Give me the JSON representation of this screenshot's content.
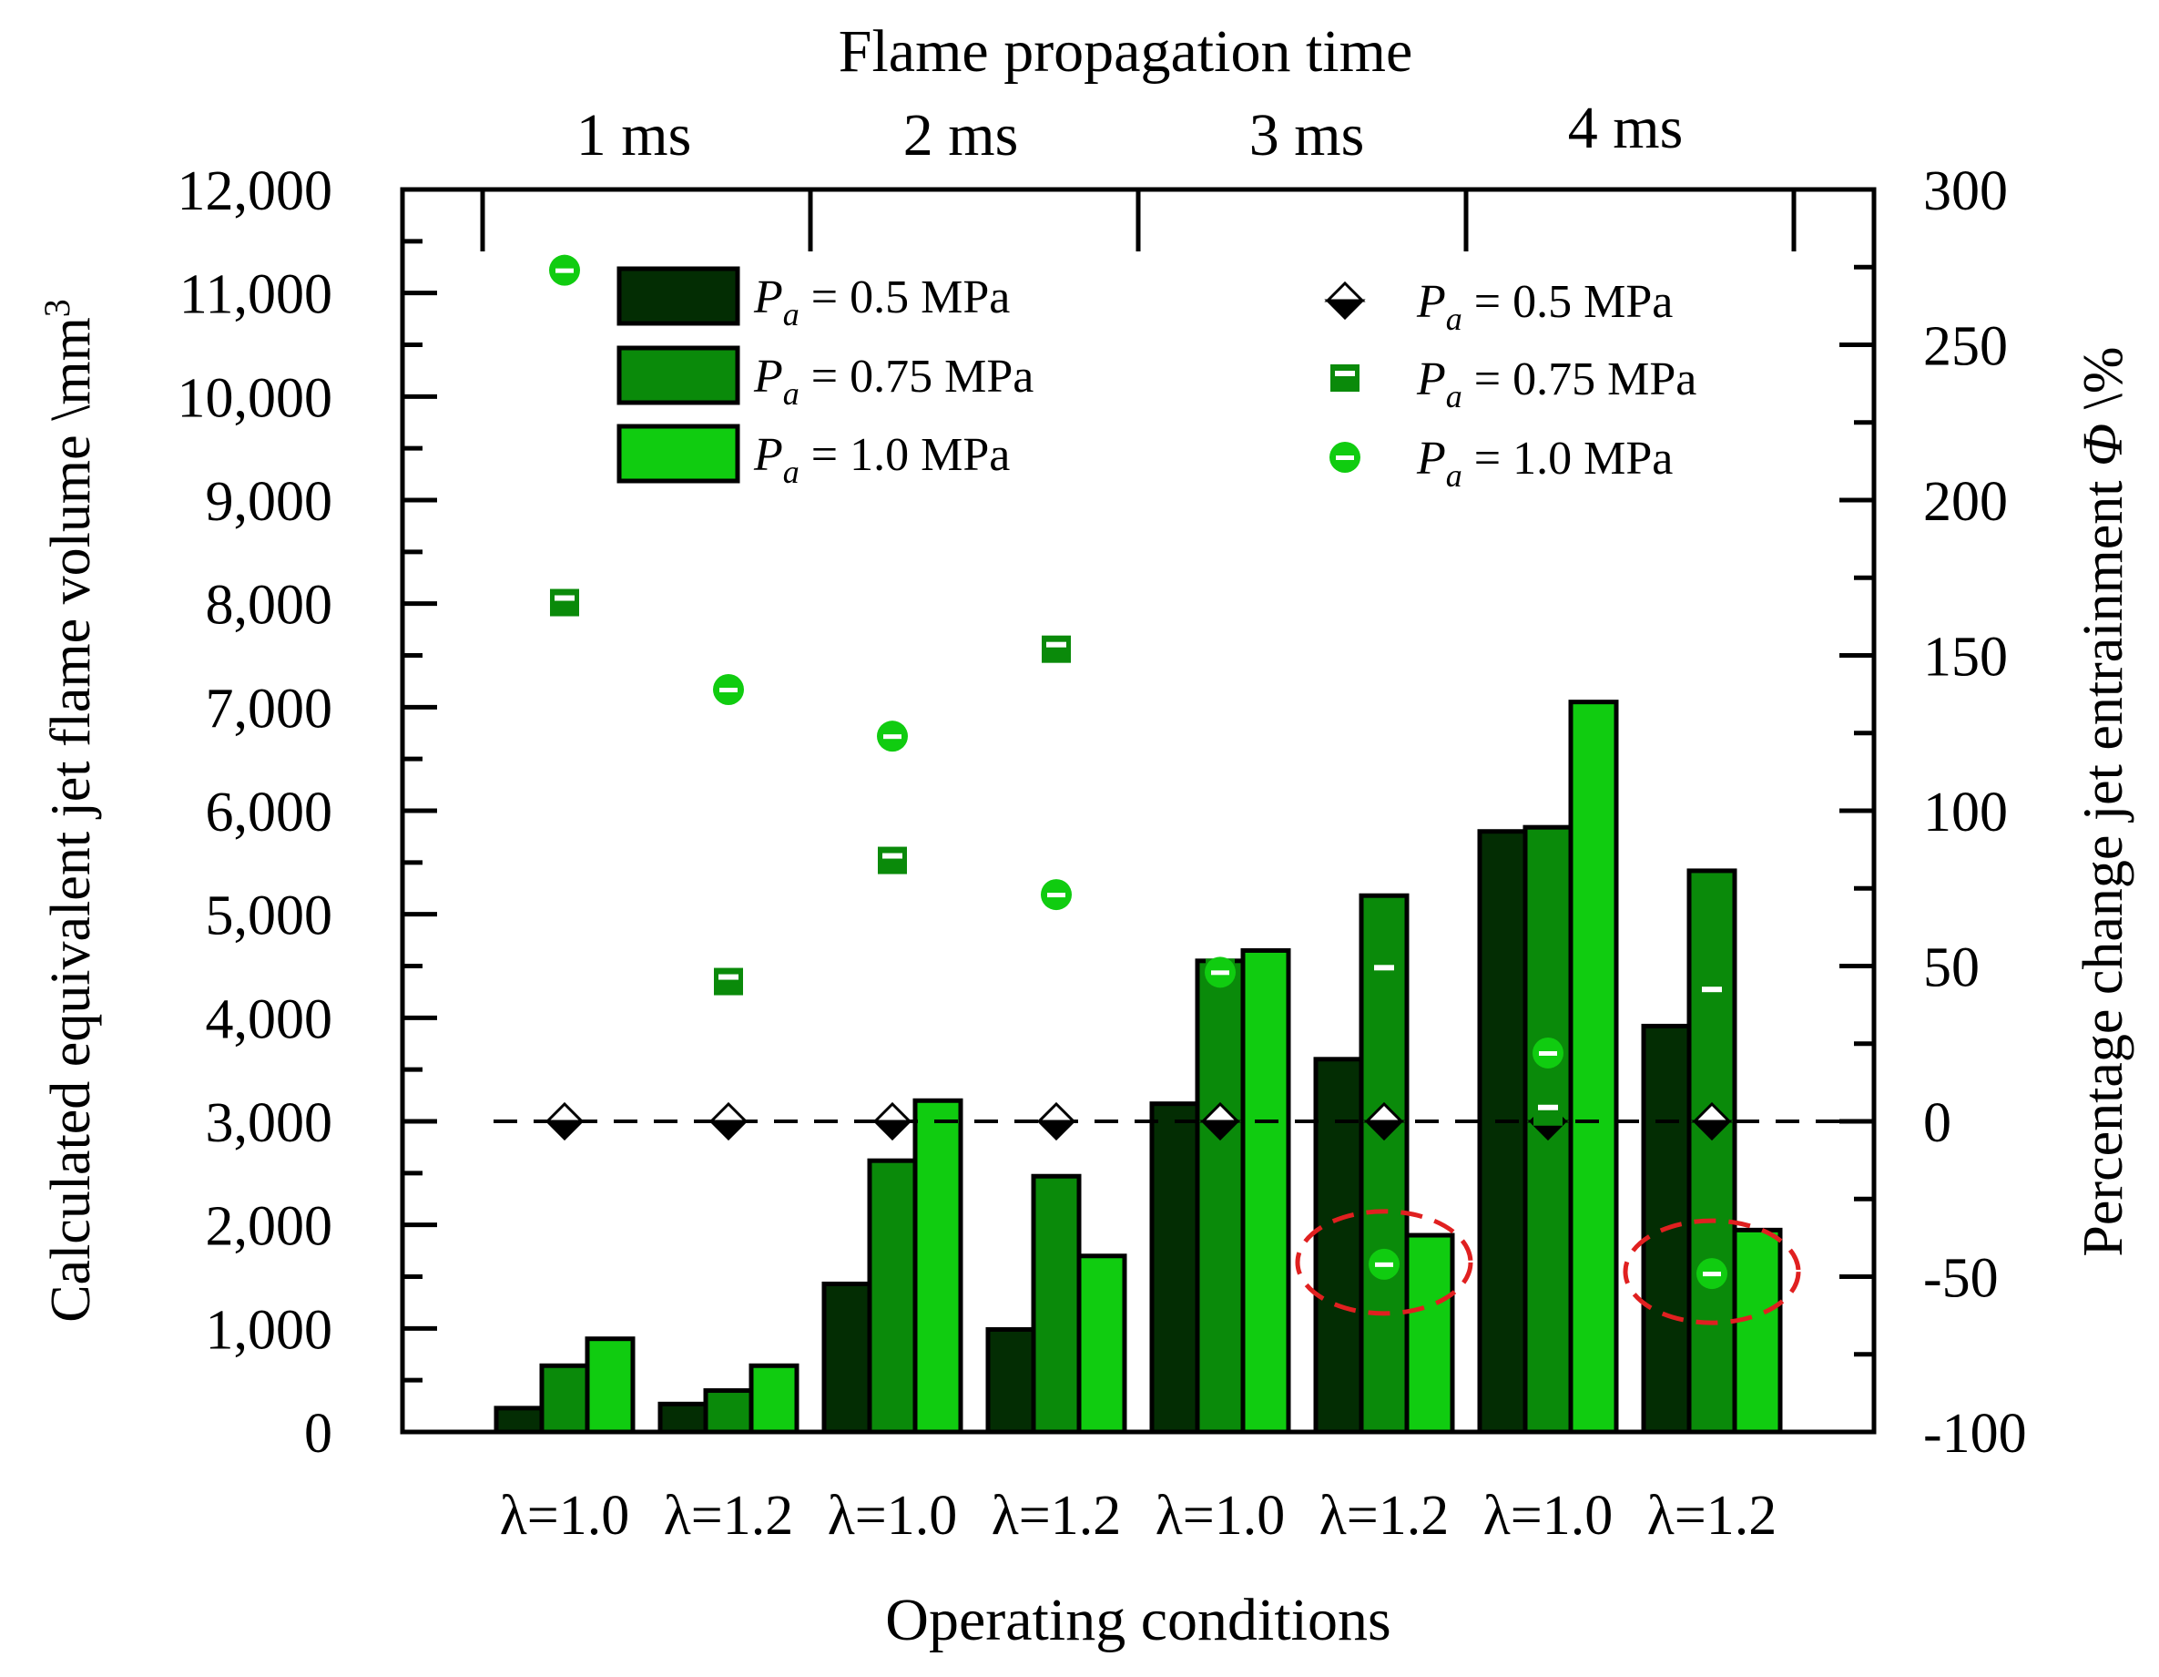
{
  "chart_data": {
    "type": "bar",
    "title": "Flame propagation time",
    "xlabel": "Operating conditions",
    "ylabel": "Calculated equivalent jet flame volume \\mm",
    "ylabel_sup": "3",
    "y2label_main": "Percentage change jet entrainment ",
    "y2label_symbol": "Φ",
    "y2label_tail": " \\%",
    "groups": [
      "1 ms",
      "2 ms",
      "3 ms",
      "4 ms"
    ],
    "categories": [
      "λ=1.0",
      "λ=1.2",
      "λ=1.0",
      "λ=1.2",
      "λ=1.0",
      "λ=1.2",
      "λ=1.0",
      "λ=1.2"
    ],
    "ylim": [
      0,
      12000
    ],
    "y_ticks": [
      0,
      1000,
      2000,
      3000,
      4000,
      5000,
      6000,
      7000,
      8000,
      9000,
      10000,
      11000,
      12000
    ],
    "y_tick_labels": [
      "0",
      "1,000",
      "2,000",
      "3,000",
      "4,000",
      "5,000",
      "6,000",
      "7,000",
      "8,000",
      "9,000",
      "10,000",
      "11,000",
      "12,000"
    ],
    "y2lim": [
      -100,
      300
    ],
    "y2_ticks": [
      -100,
      -50,
      0,
      50,
      100,
      150,
      200,
      250,
      300
    ],
    "y2_tick_labels": [
      "-100",
      "-50",
      "0",
      "50",
      "100",
      "150",
      "200",
      "250",
      "300"
    ],
    "reference_line_y2": 0,
    "grid": false,
    "legend_bars_position": "top-left",
    "legend_markers_position": "top-right",
    "series": [
      {
        "name_sym": "P",
        "name_sub": "a",
        "name_rest": " = 0.5 MPa",
        "color": "#032d03",
        "values": [
          230,
          270,
          1430,
          990,
          3170,
          3600,
          5800,
          3920
        ]
      },
      {
        "name_sym": "P",
        "name_sub": "a",
        "name_rest": " = 0.75 MPa",
        "color": "#0a8a0a",
        "values": [
          640,
          400,
          2620,
          2470,
          4550,
          5180,
          5840,
          5420
        ]
      },
      {
        "name_sym": "P",
        "name_sub": "a",
        "name_rest": " = 1.0 MPa",
        "color": "#10cc10",
        "values": [
          900,
          640,
          3200,
          1700,
          4650,
          1900,
          7050,
          1950
        ]
      }
    ],
    "marker_series": [
      {
        "name_sym": "P",
        "name_sub": "a",
        "name_rest": " = 0.5 MPa",
        "marker": "diamond-half",
        "color": "#000000",
        "values": [
          0,
          0,
          0,
          0,
          0,
          0,
          0,
          0
        ]
      },
      {
        "name_sym": "P",
        "name_sub": "a",
        "name_rest": " = 0.75 MPa",
        "marker": "square-half",
        "color": "#0a8a0a",
        "values": [
          167,
          45,
          84,
          152,
          48,
          48,
          3,
          41
        ]
      },
      {
        "name_sym": "P",
        "name_sub": "a",
        "name_rest": " = 1.0 MPa",
        "marker": "circle-half",
        "color": "#10cc10",
        "values": [
          274,
          139,
          124,
          73,
          48,
          -46,
          22,
          -49
        ]
      }
    ],
    "highlighted_categories": [
      5,
      7
    ],
    "highlight_color": "#e02020"
  }
}
